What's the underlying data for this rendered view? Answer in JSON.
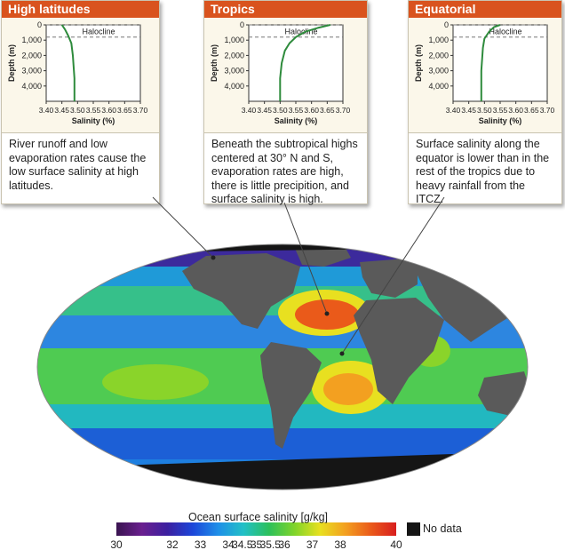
{
  "panels": [
    {
      "title": "High latitudes",
      "description": "River runoff and low evaporation rates cause the low surface salinity at high latitudes.",
      "ylabel": "Depth (m)",
      "xlabel": "Salinity (%)",
      "annotation": "Halocline"
    },
    {
      "title": "Tropics",
      "description": "Beneath the subtropical highs centered at 30° N and S, evaporation rates are high, there is little precipition, and surface salinity is high.",
      "ylabel": "Depth (m)",
      "xlabel": "Salinity (%)",
      "annotation": "Halocline"
    },
    {
      "title": "Equatorial",
      "description": "Surface salinity along the equator is lower than in the rest of the tropics due to heavy rainfall from the ITCZ.",
      "ylabel": "Depth (m)",
      "xlabel": "Salinity (%)",
      "annotation": "Halocline"
    }
  ],
  "chart_data": [
    {
      "type": "line",
      "xlabel": "Salinity (%)",
      "ylabel": "Depth (m)",
      "xlim": [
        3.4,
        3.7
      ],
      "ylim": [
        0,
        5000
      ],
      "xticks": [
        "3.40",
        "3.45",
        "3.50",
        "3.55",
        "3.60",
        "3.65",
        "3.70"
      ],
      "yticks": [
        "0",
        "1,000",
        "2,000",
        "3,000",
        "4,000"
      ],
      "halocline_depth": [
        0,
        800
      ],
      "series": [
        {
          "x": [
            3.45,
            3.46,
            3.47,
            3.48,
            3.485,
            3.49,
            3.49
          ],
          "y": [
            0,
            300,
            700,
            1200,
            2000,
            3500,
            5000
          ]
        }
      ]
    },
    {
      "type": "line",
      "xlabel": "Salinity (%)",
      "ylabel": "Depth (m)",
      "xlim": [
        3.4,
        3.7
      ],
      "ylim": [
        0,
        5000
      ],
      "xticks": [
        "3.40",
        "3.45",
        "3.50",
        "3.55",
        "3.60",
        "3.65",
        "3.70"
      ],
      "yticks": [
        "0",
        "1,000",
        "2,000",
        "3,000",
        "4,000"
      ],
      "halocline_depth": [
        0,
        800
      ],
      "series": [
        {
          "x": [
            3.66,
            3.62,
            3.58,
            3.55,
            3.53,
            3.515,
            3.505,
            3.5,
            3.5
          ],
          "y": [
            0,
            200,
            450,
            800,
            1200,
            1700,
            2500,
            3500,
            5000
          ]
        }
      ]
    },
    {
      "type": "line",
      "xlabel": "Salinity (%)",
      "ylabel": "Depth (m)",
      "xlim": [
        3.4,
        3.7
      ],
      "ylim": [
        0,
        5000
      ],
      "xticks": [
        "3.40",
        "3.45",
        "3.50",
        "3.55",
        "3.60",
        "3.65",
        "3.70"
      ],
      "yticks": [
        "0",
        "1,000",
        "2,000",
        "3,000",
        "4,000"
      ],
      "halocline_depth": [
        0,
        800
      ],
      "series": [
        {
          "x": [
            3.55,
            3.53,
            3.515,
            3.5,
            3.495,
            3.49,
            3.49
          ],
          "y": [
            0,
            150,
            450,
            900,
            1500,
            3000,
            5000
          ]
        }
      ]
    }
  ],
  "legend": {
    "title": "Ocean surface salinity [g/kg]",
    "ticks": [
      "30",
      "32",
      "33",
      "34",
      "34.5",
      "35",
      "35.5",
      "36",
      "37",
      "38",
      "40"
    ],
    "no_data_label": "No data",
    "colors": [
      "#3a1450",
      "#6a1f8f",
      "#3c1fa0",
      "#1c46d9",
      "#1e8fe8",
      "#22c0c6",
      "#2cc05a",
      "#7fd42a",
      "#e8e020",
      "#f3a020",
      "#ea5a1a",
      "#d81e1e"
    ],
    "no_data_color": "#151515",
    "land_color": "#5a5a5a",
    "line_color": "#2e8b3c",
    "header_color": "#d9531e"
  }
}
